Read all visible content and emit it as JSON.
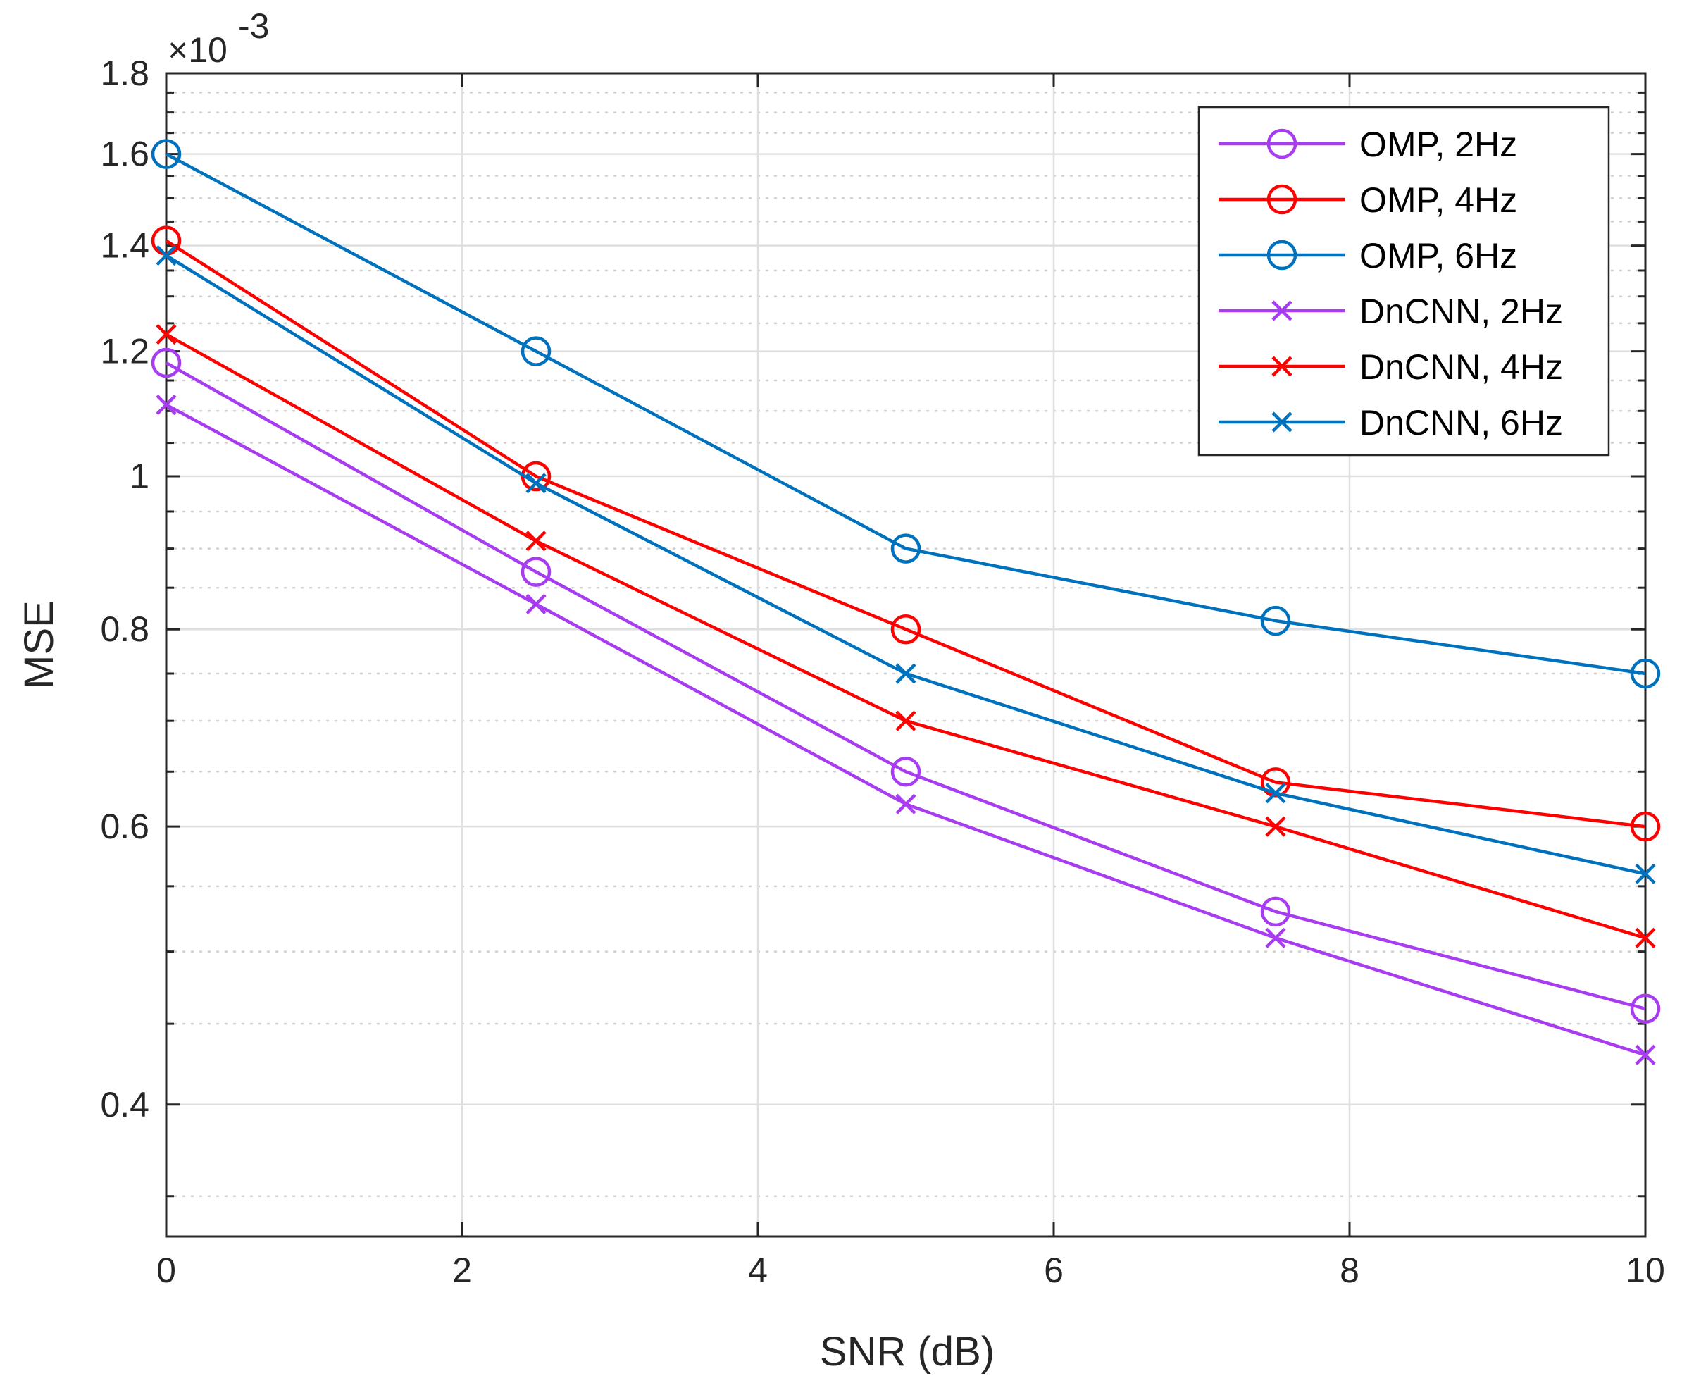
{
  "chart_data": {
    "type": "line",
    "xlabel": "SNR (dB)",
    "ylabel": "MSE",
    "y_exponent_label": "×10",
    "y_exponent_power": "-3",
    "y_scale": "log",
    "xlim": [
      0,
      10
    ],
    "ylim": [
      0.00033,
      0.0018
    ],
    "x_ticks": [
      0,
      2,
      4,
      6,
      8,
      10
    ],
    "x_tick_labels": [
      "0",
      "2",
      "4",
      "6",
      "8",
      "10"
    ],
    "y_ticks": [
      0.0004,
      0.0006,
      0.0008,
      0.001,
      0.0012,
      0.0014,
      0.0016,
      0.0018
    ],
    "y_tick_labels": [
      "0.4",
      "0.6",
      "0.8",
      "1",
      "1.2",
      "1.4",
      "1.6",
      "1.8"
    ],
    "y_minor_ticks": [
      0.00035,
      0.00045,
      0.0005,
      0.00055,
      0.00065,
      0.0007,
      0.00075,
      0.00085,
      0.0009,
      0.00095,
      0.00105,
      0.0011,
      0.00115,
      0.00125,
      0.0013,
      0.00135,
      0.00145,
      0.0015,
      0.00155,
      0.00165,
      0.0017,
      0.00175
    ],
    "grid": true,
    "legend_position": "top-right",
    "x": [
      0,
      2.5,
      5,
      7.5,
      10
    ],
    "series": [
      {
        "name": "OMP, 2Hz",
        "color": "#a83cf0",
        "marker": "circle",
        "values": [
          0.00118,
          0.00087,
          0.00065,
          0.00053,
          0.00046
        ]
      },
      {
        "name": "OMP, 4Hz",
        "color": "#ff0000",
        "marker": "circle",
        "values": [
          0.00141,
          0.001,
          0.0008,
          0.00064,
          0.0006
        ]
      },
      {
        "name": "OMP, 6Hz",
        "color": "#0072bd",
        "marker": "circle",
        "values": [
          0.0016,
          0.0012,
          0.0009,
          0.00081,
          0.00075
        ]
      },
      {
        "name": "DnCNN, 2Hz",
        "color": "#a83cf0",
        "marker": "x",
        "values": [
          0.00111,
          0.00083,
          0.00062,
          0.00051,
          0.00043
        ]
      },
      {
        "name": "DnCNN, 4Hz",
        "color": "#ff0000",
        "marker": "x",
        "values": [
          0.00123,
          0.00091,
          0.0007,
          0.0006,
          0.00051
        ]
      },
      {
        "name": "DnCNN, 6Hz",
        "color": "#0072bd",
        "marker": "x",
        "values": [
          0.00138,
          0.00099,
          0.00075,
          0.00063,
          0.00056
        ]
      }
    ]
  }
}
